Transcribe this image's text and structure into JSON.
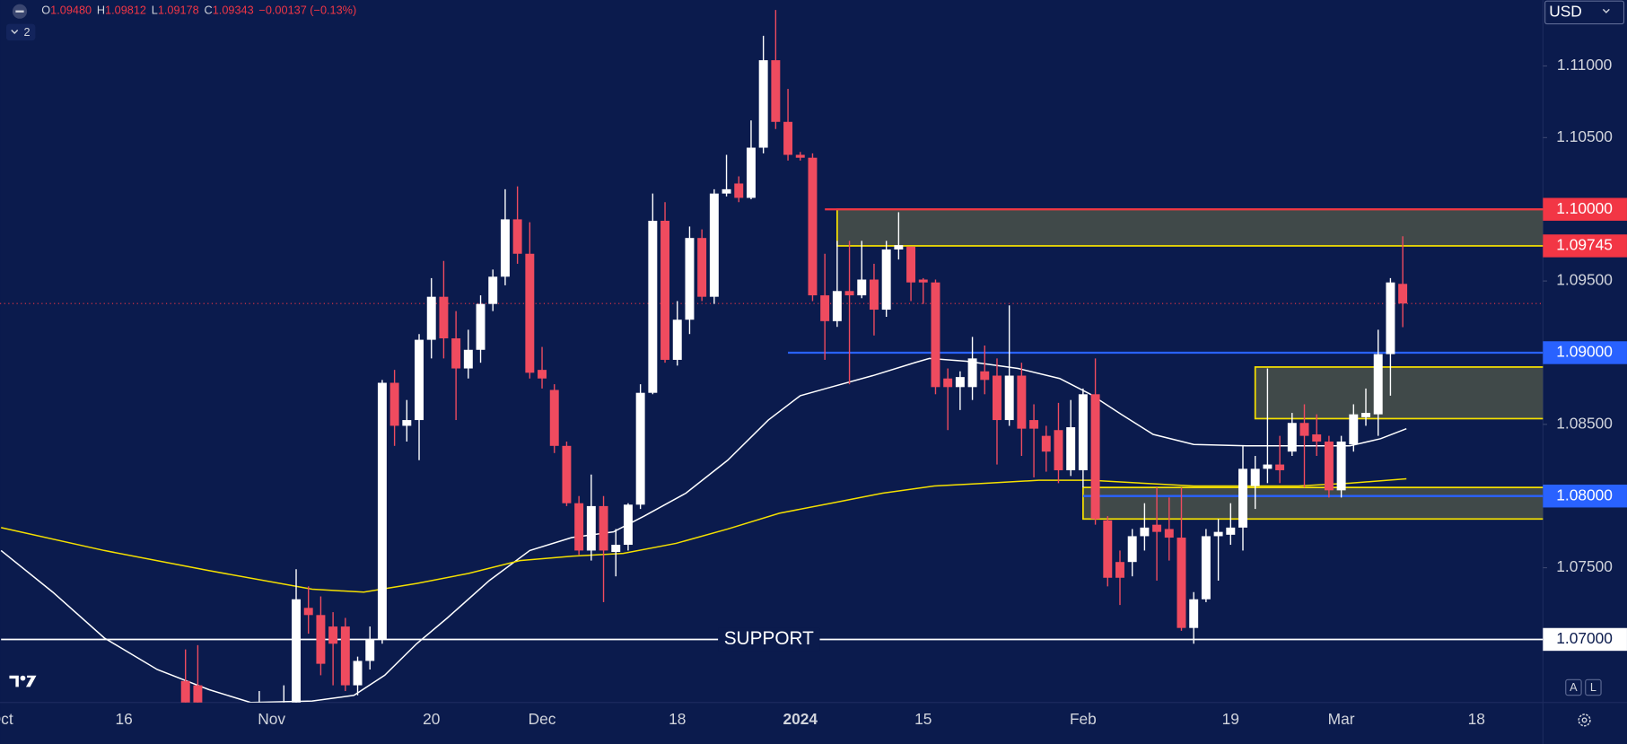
{
  "header": {
    "ohlc": [
      {
        "key": "O",
        "value": "1.09480"
      },
      {
        "key": "H",
        "value": "1.09812"
      },
      {
        "key": "L",
        "value": "1.09178"
      },
      {
        "key": "C",
        "value": "1.09343"
      }
    ],
    "change": "−0.00137 (−0.13%)",
    "indicators": "2",
    "currency": "USD",
    "buttons": [
      "A",
      "L"
    ]
  },
  "chart_data": {
    "type": "candlestick",
    "up_color": "#ffffff",
    "down_color": "#ef4b5f",
    "categories": [
      "Oct",
      null,
      null,
      null,
      null,
      null,
      null,
      null,
      null,
      null,
      "16",
      null,
      null,
      null,
      null,
      null,
      null,
      null,
      null,
      null,
      null,
      null,
      "Nov",
      null,
      null,
      null,
      null,
      null,
      null,
      null,
      null,
      null,
      null,
      null,
      null,
      "20",
      null,
      null,
      null,
      null,
      null,
      null,
      null,
      null,
      "Dec",
      null,
      null,
      null,
      null,
      null,
      null,
      null,
      null,
      null,
      null,
      "18",
      null,
      null,
      null,
      null,
      null,
      null,
      null,
      null,
      null,
      "2024",
      null,
      null,
      null,
      null,
      null,
      null,
      null,
      null,
      null,
      "15",
      null,
      null,
      null,
      null,
      null,
      null,
      null,
      null,
      null,
      null,
      null,
      null,
      "Feb",
      null,
      null,
      null,
      null,
      null,
      null,
      null,
      null,
      null,
      null,
      null,
      "19",
      null,
      null,
      null,
      null,
      null,
      null,
      null,
      null,
      "Mar",
      null,
      null,
      null,
      null,
      null,
      null,
      null,
      null,
      null,
      null,
      "18",
      null,
      null,
      null,
      null,
      null
    ],
    "open": [
      null,
      null,
      null,
      null,
      null,
      null,
      null,
      null,
      null,
      null,
      null,
      null,
      null,
      null,
      null,
      1.0671,
      1.0668,
      null,
      null,
      null,
      null,
      1.063,
      null,
      1.062,
      1.062,
      1.0722,
      1.0717,
      1.0709,
      1.0709,
      1.0668,
      1.0685,
      1.07,
      1.0879,
      1.0849,
      1.0853,
      1.0909,
      1.0939,
      1.091,
      1.0889,
      1.0902,
      1.0934,
      1.0953,
      1.0993,
      1.0969,
      1.0888,
      1.0874,
      1.0835,
      1.0795,
      1.0762,
      1.0793,
      1.0761,
      1.0766,
      1.0794,
      1.0872,
      1.0992,
      1.0895,
      1.0923,
      1.098,
      1.0939,
      1.1011,
      1.1018,
      1.1008,
      1.1043,
      1.1104,
      1.1061,
      1.1038,
      1.1036,
      1.094,
      1.0922,
      1.0943,
      1.094,
      1.0951,
      1.093,
      1.0972,
      1.0974,
      1.0951,
      1.0949,
      1.0882,
      1.0876,
      1.0876,
      1.0887,
      1.0884,
      1.0853,
      1.0884,
      1.0853,
      1.0842,
      1.0846,
      1.0818,
      1.0818,
      1.0871,
      1.0783,
      1.0754,
      1.0754,
      1.0772,
      1.078,
      1.0777,
      1.0771,
      1.0708,
      1.0728,
      1.0772,
      1.0773,
      1.0778,
      1.0807,
      1.0819,
      1.0822,
      1.0831,
      1.0851,
      1.0843,
      1.0838,
      1.0804,
      1.0836,
      1.0855,
      1.0857,
      1.0899,
      1.0948,
      null,
      null,
      null,
      null,
      null,
      null,
      null,
      null,
      null,
      null,
      null
    ],
    "high": [
      null,
      null,
      null,
      null,
      null,
      null,
      null,
      null,
      null,
      null,
      null,
      null,
      null,
      null,
      null,
      1.0693,
      1.0696,
      null,
      null,
      null,
      null,
      1.0664,
      null,
      1.0668,
      1.0749,
      1.0737,
      1.073,
      1.0719,
      1.0715,
      1.0688,
      1.0709,
      1.0881,
      1.0888,
      1.0867,
      1.0913,
      1.0952,
      1.0964,
      1.0929,
      1.0916,
      1.094,
      1.0958,
      1.1014,
      1.1016,
      1.0991,
      1.0904,
      1.0878,
      1.0838,
      1.08,
      1.0815,
      1.08,
      1.0777,
      1.0795,
      1.0878,
      1.1011,
      1.1005,
      1.0936,
      1.0988,
      1.0986,
      1.1014,
      1.1038,
      1.1023,
      1.1062,
      1.1121,
      1.1139,
      1.1084,
      1.104,
      1.1039,
      1.0969,
      1.0978,
      1.0978,
      1.0978,
      1.0962,
      1.0978,
      1.0998,
      1.0974,
      1.0952,
      1.0951,
      1.0889,
      1.0887,
      1.0911,
      1.0905,
      1.0896,
      1.0933,
      1.0893,
      1.0864,
      1.0849,
      1.0865,
      1.0867,
      1.0875,
      1.0896,
      1.0786,
      1.0762,
      1.0777,
      1.0795,
      1.0806,
      1.0799,
      1.0806,
      1.0733,
      1.0777,
      1.0784,
      1.0795,
      1.0835,
      1.0828,
      1.0889,
      1.0842,
      1.0858,
      1.0864,
      1.0857,
      1.0842,
      1.0842,
      1.0864,
      1.0875,
      1.0916,
      1.0952,
      1.09812,
      null,
      null,
      null,
      null,
      null,
      null,
      null,
      null,
      null,
      null,
      null
    ],
    "low": [
      null,
      null,
      null,
      null,
      null,
      null,
      null,
      null,
      null,
      null,
      null,
      null,
      null,
      null,
      null,
      1.064,
      1.063,
      null,
      null,
      null,
      null,
      1.061,
      null,
      1.061,
      1.061,
      1.0704,
      1.0675,
      1.0668,
      1.0664,
      1.0661,
      1.0679,
      1.0697,
      1.0835,
      1.0838,
      1.0825,
      1.0896,
      1.0896,
      1.0853,
      1.0882,
      1.0893,
      1.0929,
      1.0947,
      1.0962,
      1.0882,
      1.0875,
      1.083,
      1.0793,
      1.0759,
      1.0755,
      1.0726,
      1.0744,
      1.0762,
      1.0791,
      1.0871,
      1.0893,
      1.0891,
      1.0913,
      1.0936,
      1.0934,
      1.1009,
      1.1005,
      1.1007,
      1.1039,
      1.1056,
      1.1034,
      1.1034,
      1.0936,
      1.0895,
      1.0918,
      1.0878,
      1.0938,
      1.0912,
      1.0925,
      1.0965,
      1.0936,
      1.0934,
      1.0871,
      1.0846,
      1.086,
      1.0867,
      1.0871,
      1.0822,
      1.0849,
      1.0828,
      1.0813,
      1.0817,
      1.0809,
      1.0814,
      1.0806,
      1.078,
      1.0737,
      1.0724,
      1.0744,
      1.0762,
      1.0741,
      1.0755,
      1.0706,
      1.0697,
      1.0726,
      1.0741,
      1.0766,
      1.0762,
      1.0791,
      1.0809,
      1.0809,
      1.0828,
      1.0806,
      1.0828,
      1.0799,
      1.0799,
      1.0831,
      1.0849,
      1.0842,
      1.087,
      1.09178,
      null,
      null,
      null,
      null,
      null,
      null,
      null,
      null,
      null,
      null,
      null
    ],
    "close": [
      null,
      null,
      null,
      null,
      null,
      null,
      null,
      null,
      null,
      null,
      null,
      null,
      null,
      null,
      null,
      1.0655,
      1.065,
      null,
      null,
      null,
      null,
      1.0645,
      null,
      1.064,
      1.0728,
      1.0717,
      1.0683,
      1.0697,
      1.0668,
      1.0685,
      1.07,
      1.0879,
      1.0849,
      1.0853,
      1.0909,
      1.0939,
      1.091,
      1.0889,
      1.0902,
      1.0934,
      1.0953,
      1.0993,
      1.0969,
      1.0886,
      1.0882,
      1.0835,
      1.0795,
      1.0762,
      1.0793,
      1.0762,
      1.0766,
      1.0794,
      1.0872,
      1.0992,
      1.0895,
      1.0923,
      1.098,
      1.0939,
      1.1011,
      1.1014,
      1.1008,
      1.1043,
      1.1104,
      1.1061,
      1.1038,
      1.1036,
      1.094,
      1.0922,
      1.0943,
      1.094,
      1.0951,
      1.093,
      1.0972,
      1.0975,
      1.0949,
      1.0949,
      1.0876,
      1.0876,
      1.0883,
      1.0896,
      1.0881,
      1.0853,
      1.0884,
      1.0847,
      1.0847,
      1.0831,
      1.0818,
      1.0848,
      1.0871,
      1.0784,
      1.0743,
      1.0743,
      1.0772,
      1.0778,
      1.0775,
      1.0771,
      1.0708,
      1.0728,
      1.0772,
      1.0775,
      1.0778,
      1.0819,
      1.0819,
      1.0822,
      1.0818,
      1.0851,
      1.0842,
      1.0838,
      1.0804,
      1.0838,
      1.0857,
      1.0858,
      1.0899,
      1.0949,
      1.09343,
      null,
      null,
      null,
      null,
      null,
      null,
      null,
      null,
      null,
      null,
      null
    ],
    "ylim": [
      1.0656,
      1.1146
    ],
    "yticks": [
      {
        "value": 1.07,
        "label": "1.07000"
      },
      {
        "value": 1.075,
        "label": "1.07500"
      },
      {
        "value": 1.08,
        "label": "1.08000"
      },
      {
        "value": 1.085,
        "label": "1.08500"
      },
      {
        "value": 1.09,
        "label": "1.09000"
      },
      {
        "value": 1.095,
        "label": "1.09500"
      },
      {
        "value": 1.1,
        "label": "1.10000"
      },
      {
        "value": 1.105,
        "label": "1.10500"
      },
      {
        "value": 1.11,
        "label": "1.11000"
      }
    ],
    "overlays": [
      {
        "color": "#ffffff",
        "x": [
          0,
          4.2,
          8.4,
          12.7,
          16.9,
          20.3,
          25.3,
          28.7,
          31.2,
          33.8,
          36.3,
          39.7,
          43,
          46.4,
          49.8,
          52.3,
          55.7,
          59.1,
          62.4,
          65,
          67.5,
          70.9,
          74.3,
          75.5,
          78.5,
          82.7,
          86.1,
          88.6,
          91.1,
          93.7,
          97,
          101.3,
          105.5,
          109.7,
          112.2,
          114.3
        ],
        "values": [
          1.0762,
          1.0733,
          1.0701,
          1.0679,
          1.0665,
          1.0656,
          1.0657,
          1.0661,
          1.0675,
          1.0697,
          1.0715,
          1.0741,
          1.0762,
          1.0771,
          1.0775,
          1.0786,
          1.0802,
          1.0825,
          1.0853,
          1.087,
          1.0876,
          1.0884,
          1.0893,
          1.0896,
          1.0894,
          1.0889,
          1.0882,
          1.0871,
          1.0857,
          1.0843,
          1.0836,
          1.0835,
          1.0835,
          1.0835,
          1.084,
          1.0847
        ]
      },
      {
        "color": "#f5e000",
        "x": [
          0,
          8.4,
          16.9,
          25.3,
          29.5,
          33.8,
          38,
          42.2,
          46.4,
          50.6,
          54.9,
          59.1,
          63.3,
          67.5,
          71.7,
          75.9,
          80.2,
          84.4,
          88.6,
          92.8,
          97,
          101.3,
          105.5,
          109.7,
          114.3
        ],
        "values": [
          1.0778,
          1.0762,
          1.0748,
          1.0735,
          1.0733,
          1.0739,
          1.0746,
          1.0755,
          1.0758,
          1.076,
          1.0767,
          1.0777,
          1.0788,
          1.0795,
          1.0802,
          1.0807,
          1.0809,
          1.0811,
          1.0811,
          1.0809,
          1.0807,
          1.0807,
          1.0807,
          1.0809,
          1.0812
        ]
      }
    ],
    "zone_fill": "#464f49",
    "zone_border": "#f5e000",
    "zones": [
      {
        "high": 1.1,
        "low": 1.09745,
        "from": 68
      },
      {
        "high": 1.089,
        "low": 1.0854,
        "from": 102
      },
      {
        "high": 1.0806,
        "low": 1.0784,
        "from": 88
      }
    ],
    "levels": [
      {
        "value": 1.1,
        "label": "1.10000",
        "color": "#f23645",
        "from": 67
      },
      {
        "value": 1.09745,
        "color": "#f23645"
      },
      {
        "value": 1.09,
        "label": "1.09000",
        "color": "#2962ff",
        "from": 64
      },
      {
        "value": 1.08,
        "label": "1.08000",
        "color": "#2962ff",
        "from": 88
      },
      {
        "value": 1.07,
        "label": "1.07000",
        "color": "#ffffff",
        "from": 0,
        "text": "SUPPORT"
      }
    ],
    "last_price": 1.09343,
    "last_price_color": "#f23645"
  }
}
